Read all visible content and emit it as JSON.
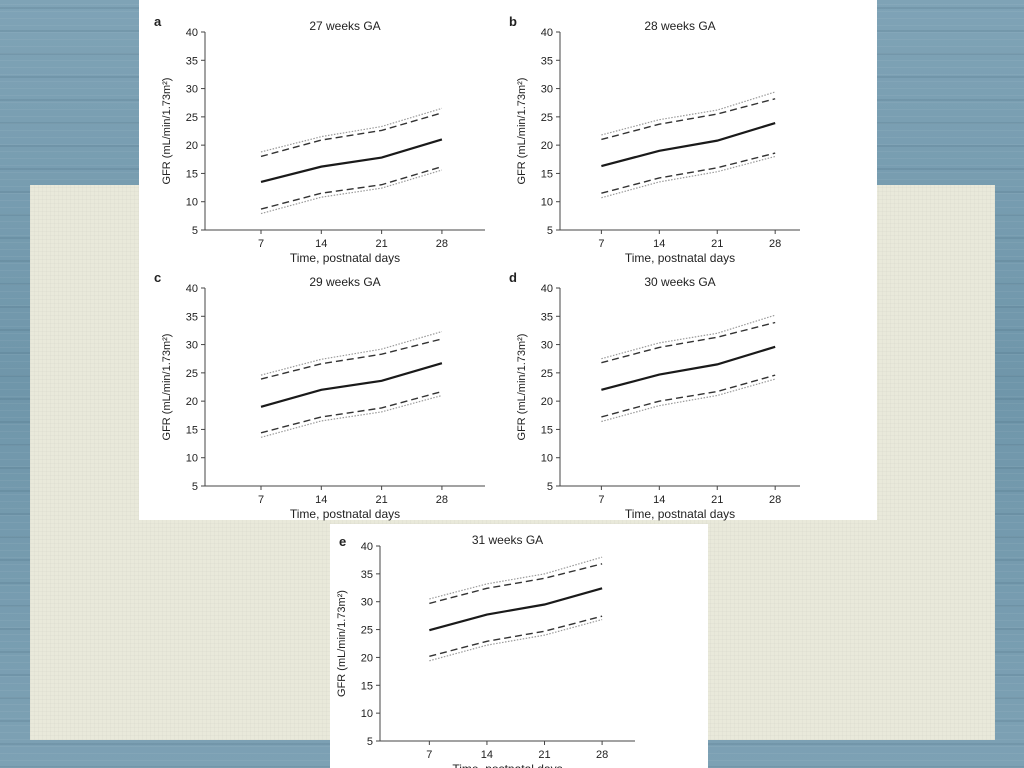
{
  "chart_data": [
    {
      "type": "line",
      "panel_label": "a",
      "title": "27 weeks GA",
      "xlabel": "Time, postnatal days",
      "ylabel": "GFR (mL/min/1.73m²)",
      "x": [
        7,
        14,
        21,
        28
      ],
      "ylim": [
        5,
        40
      ],
      "yticks": [
        5,
        10,
        15,
        20,
        25,
        30,
        35,
        40
      ],
      "series": [
        {
          "style": "dotted",
          "values": [
            18.8,
            21.5,
            23.3,
            26.5
          ]
        },
        {
          "style": "dashed",
          "values": [
            18.0,
            20.9,
            22.6,
            25.7
          ]
        },
        {
          "style": "solid",
          "values": [
            13.5,
            16.2,
            17.8,
            21.0
          ]
        },
        {
          "style": "dashed",
          "values": [
            8.7,
            11.5,
            13.0,
            16.2
          ]
        },
        {
          "style": "dotted",
          "values": [
            7.9,
            10.8,
            12.4,
            15.6
          ]
        }
      ]
    },
    {
      "type": "line",
      "panel_label": "b",
      "title": "28 weeks GA",
      "xlabel": "Time, postnatal days",
      "ylabel": "GFR (mL/min/1.73m²)",
      "x": [
        7,
        14,
        21,
        28
      ],
      "ylim": [
        5,
        40
      ],
      "yticks": [
        5,
        10,
        15,
        20,
        25,
        30,
        35,
        40
      ],
      "series": [
        {
          "style": "dotted",
          "values": [
            21.8,
            24.5,
            26.2,
            29.4
          ]
        },
        {
          "style": "dashed",
          "values": [
            21.0,
            23.7,
            25.5,
            28.2
          ]
        },
        {
          "style": "solid",
          "values": [
            16.3,
            19.0,
            20.8,
            23.9
          ]
        },
        {
          "style": "dashed",
          "values": [
            11.5,
            14.2,
            16.0,
            18.6
          ]
        },
        {
          "style": "dotted",
          "values": [
            10.7,
            13.5,
            15.3,
            18.0
          ]
        }
      ]
    },
    {
      "type": "line",
      "panel_label": "c",
      "title": "29 weeks GA",
      "xlabel": "Time, postnatal days",
      "ylabel": "GFR (mL/min/1.73m²)",
      "x": [
        7,
        14,
        21,
        28
      ],
      "ylim": [
        5,
        40
      ],
      "yticks": [
        5,
        10,
        15,
        20,
        25,
        30,
        35,
        40
      ],
      "series": [
        {
          "style": "dotted",
          "values": [
            24.6,
            27.4,
            29.2,
            32.3
          ]
        },
        {
          "style": "dashed",
          "values": [
            23.9,
            26.6,
            28.3,
            31.0
          ]
        },
        {
          "style": "solid",
          "values": [
            19.0,
            22.0,
            23.6,
            26.7
          ]
        },
        {
          "style": "dashed",
          "values": [
            14.4,
            17.2,
            18.8,
            21.7
          ]
        },
        {
          "style": "dotted",
          "values": [
            13.6,
            16.5,
            18.1,
            21.0
          ]
        }
      ]
    },
    {
      "type": "line",
      "panel_label": "d",
      "title": "30 weeks GA",
      "xlabel": "Time, postnatal days",
      "ylabel": "GFR (mL/min/1.73m²)",
      "x": [
        7,
        14,
        21,
        28
      ],
      "ylim": [
        5,
        40
      ],
      "yticks": [
        5,
        10,
        15,
        20,
        25,
        30,
        35,
        40
      ],
      "series": [
        {
          "style": "dotted",
          "values": [
            27.5,
            30.3,
            32.0,
            35.2
          ]
        },
        {
          "style": "dashed",
          "values": [
            26.8,
            29.5,
            31.3,
            33.9
          ]
        },
        {
          "style": "solid",
          "values": [
            22.0,
            24.7,
            26.5,
            29.6
          ]
        },
        {
          "style": "dashed",
          "values": [
            17.2,
            20.0,
            21.7,
            24.6
          ]
        },
        {
          "style": "dotted",
          "values": [
            16.4,
            19.2,
            21.0,
            23.9
          ]
        }
      ]
    },
    {
      "type": "line",
      "panel_label": "e",
      "title": "31 weeks GA",
      "xlabel": "Time, postnatal days",
      "ylabel": "GFR (mL/min/1.73m²)",
      "x": [
        7,
        14,
        21,
        28
      ],
      "ylim": [
        5,
        40
      ],
      "yticks": [
        5,
        10,
        15,
        20,
        25,
        30,
        35,
        40
      ],
      "series": [
        {
          "style": "dotted",
          "values": [
            30.5,
            33.2,
            35.0,
            38.0
          ]
        },
        {
          "style": "dashed",
          "values": [
            29.7,
            32.4,
            34.2,
            36.8
          ]
        },
        {
          "style": "solid",
          "values": [
            24.9,
            27.7,
            29.5,
            32.4
          ]
        },
        {
          "style": "dashed",
          "values": [
            20.2,
            22.9,
            24.7,
            27.4
          ]
        },
        {
          "style": "dotted",
          "values": [
            19.4,
            22.2,
            24.0,
            26.8
          ]
        }
      ]
    }
  ],
  "colors": {
    "solid": "#1a1a1a",
    "dashed": "#333333",
    "dotted": "#9a9a9a",
    "axis": "#444444"
  }
}
